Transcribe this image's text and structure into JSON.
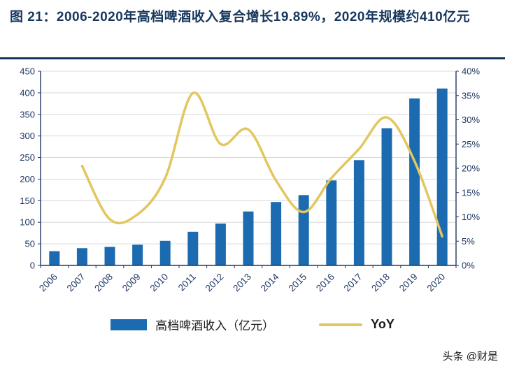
{
  "page": {
    "title": "图  21：2006-2020年高档啤酒收入复合增长19.89%，2020年规模约410亿元",
    "watermark": "头条 @财是"
  },
  "colors": {
    "title": "#17375E",
    "bar": "#1C6BB0",
    "line": "#E2C75E",
    "axis": "#1F3864",
    "grid": "#D9D9D9"
  },
  "legend": {
    "revenue_label": "高档啤酒收入（亿元）",
    "yoy_label": "YoY"
  },
  "chart_data": {
    "type": "bar",
    "subtype": "bar+line combo, dual axis",
    "categories": [
      "2006",
      "2007",
      "2008",
      "2009",
      "2010",
      "2011",
      "2012",
      "2013",
      "2014",
      "2015",
      "2016",
      "2017",
      "2018",
      "2019",
      "2020"
    ],
    "series": [
      {
        "name": "高档啤酒收入（亿元）",
        "type": "bar",
        "axis": "left",
        "values": [
          33,
          40,
          43,
          48,
          57,
          78,
          97,
          125,
          147,
          163,
          197,
          244,
          318,
          387,
          410
        ]
      },
      {
        "name": "YoY",
        "type": "line",
        "axis": "right",
        "values": [
          null,
          20.5,
          9.5,
          10.5,
          18,
          35.5,
          25,
          28,
          17.5,
          11,
          18,
          24,
          30.5,
          21.5,
          6
        ]
      }
    ],
    "left_axis": {
      "min": 0,
      "max": 450,
      "step": 50
    },
    "right_axis": {
      "min": 0,
      "max": 40,
      "step": 5,
      "format": "percent"
    },
    "left_ticks": [
      "0",
      "50",
      "100",
      "150",
      "200",
      "250",
      "300",
      "350",
      "400",
      "450"
    ],
    "right_ticks": [
      "0%",
      "5%",
      "10%",
      "15%",
      "20%",
      "25%",
      "30%",
      "35%",
      "40%"
    ],
    "grid": true,
    "legend_position": "bottom"
  }
}
